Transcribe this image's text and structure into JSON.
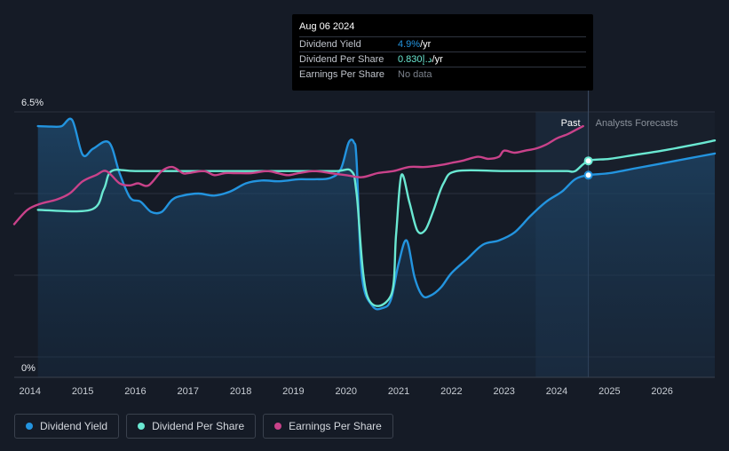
{
  "tooltip": {
    "date": "Aug 06 2024",
    "rows": [
      {
        "label": "Dividend Yield",
        "value": "4.9%",
        "unit": " /yr"
      },
      {
        "label": "Dividend Per Share",
        "value": "0.830د.إ",
        "unit": " /yr"
      },
      {
        "label": "Earnings Per Share",
        "value": "No data",
        "unit": ""
      }
    ]
  },
  "colors": {
    "yield": "#2394df",
    "dps": "#6ae8d2",
    "eps": "#c9428a",
    "background": "#151b26"
  },
  "legend": [
    {
      "label": "Dividend Yield",
      "color": "#2394df"
    },
    {
      "label": "Dividend Per Share",
      "color": "#6ae8d2"
    },
    {
      "label": "Earnings Per Share",
      "color": "#c9428a"
    }
  ],
  "chart_data": {
    "type": "line",
    "y_tick_labels": [
      "6.5%",
      "0%"
    ],
    "ylim": [
      0,
      6.5
    ],
    "xlim": [
      2013.7,
      2027.0
    ],
    "x_ticks": [
      2014,
      2015,
      2016,
      2017,
      2018,
      2019,
      2020,
      2021,
      2022,
      2023,
      2024,
      2025,
      2026
    ],
    "past_label": "Past",
    "forecast_label": "Analysts Forecasts",
    "forecast_start": 2023.6,
    "divider_x": 2024.6,
    "grid": true,
    "series": [
      {
        "name": "Dividend Yield",
        "key": "yield",
        "area": true,
        "x": [
          2014.15,
          2014.4,
          2014.6,
          2014.8,
          2015.0,
          2015.2,
          2015.5,
          2015.7,
          2015.9,
          2016.1,
          2016.3,
          2016.5,
          2016.7,
          2016.9,
          2017.2,
          2017.5,
          2017.8,
          2018.1,
          2018.4,
          2018.7,
          2018.9,
          2019.1,
          2019.4,
          2019.7,
          2019.9,
          2020.05,
          2020.15,
          2020.2,
          2020.3,
          2020.5,
          2020.7,
          2020.85,
          2021.0,
          2021.15,
          2021.3,
          2021.45,
          2021.6,
          2021.8,
          2022.0,
          2022.3,
          2022.6,
          2022.9,
          2023.2,
          2023.5,
          2023.8,
          2024.1,
          2024.35,
          2024.6,
          2025.0,
          2025.5,
          2026.0,
          2026.5,
          2027.0
        ],
        "y": [
          6.15,
          6.14,
          6.15,
          6.3,
          5.45,
          5.6,
          5.75,
          5.0,
          4.4,
          4.3,
          4.05,
          4.05,
          4.35,
          4.45,
          4.5,
          4.45,
          4.55,
          4.75,
          4.82,
          4.8,
          4.82,
          4.85,
          4.85,
          4.88,
          5.1,
          5.75,
          5.75,
          5.3,
          2.5,
          1.75,
          1.7,
          1.9,
          2.8,
          3.35,
          2.45,
          2.0,
          2.0,
          2.2,
          2.55,
          2.9,
          3.25,
          3.35,
          3.55,
          3.95,
          4.3,
          4.55,
          4.85,
          4.95,
          5.0,
          5.12,
          5.24,
          5.36,
          5.48
        ]
      },
      {
        "name": "Dividend Per Share",
        "key": "dps",
        "area": false,
        "x": [
          2014.15,
          2015.15,
          2015.4,
          2015.55,
          2016.0,
          2017.0,
          2018.0,
          2019.0,
          2019.8,
          2020.1,
          2020.2,
          2020.4,
          2020.85,
          2020.95,
          2021.05,
          2021.2,
          2021.35,
          2021.5,
          2021.65,
          2021.85,
          2022.1,
          2023.0,
          2023.9,
          2024.2,
          2024.35,
          2024.6,
          2025.0,
          2025.5,
          2026.0,
          2026.5,
          2027.0
        ],
        "y": [
          4.1,
          4.1,
          4.6,
          5.05,
          5.05,
          5.05,
          5.05,
          5.05,
          5.05,
          5.05,
          4.5,
          2.0,
          2.0,
          3.5,
          4.95,
          4.3,
          3.6,
          3.6,
          4.05,
          4.75,
          5.05,
          5.05,
          5.05,
          5.05,
          5.05,
          5.3,
          5.35,
          5.45,
          5.55,
          5.67,
          5.8
        ]
      },
      {
        "name": "Earnings Per Share",
        "key": "eps",
        "area": false,
        "x": [
          2013.7,
          2013.95,
          2014.2,
          2014.5,
          2014.75,
          2015.0,
          2015.25,
          2015.45,
          2015.7,
          2015.9,
          2016.05,
          2016.25,
          2016.5,
          2016.7,
          2016.9,
          2017.0,
          2017.3,
          2017.5,
          2017.7,
          2017.9,
          2018.2,
          2018.5,
          2018.7,
          2018.9,
          2019.1,
          2019.4,
          2019.7,
          2020.0,
          2020.3,
          2020.6,
          2020.9,
          2021.2,
          2021.5,
          2021.8,
          2022.0,
          2022.2,
          2022.5,
          2022.7,
          2022.9,
          2023.0,
          2023.2,
          2023.4,
          2023.6,
          2023.8,
          2024.0,
          2024.2,
          2024.35,
          2024.5
        ],
        "y": [
          3.75,
          4.1,
          4.25,
          4.35,
          4.5,
          4.8,
          4.95,
          5.05,
          4.75,
          4.7,
          4.75,
          4.7,
          5.05,
          5.15,
          5.0,
          5.0,
          5.05,
          4.95,
          5.0,
          5.0,
          5.0,
          5.05,
          5.0,
          4.95,
          5.0,
          5.05,
          5.0,
          4.95,
          4.9,
          5.0,
          5.05,
          5.15,
          5.15,
          5.2,
          5.25,
          5.3,
          5.4,
          5.35,
          5.4,
          5.55,
          5.5,
          5.55,
          5.6,
          5.7,
          5.85,
          5.95,
          6.05,
          6.15
        ]
      }
    ],
    "markers": [
      {
        "key": "dps",
        "x": 2024.6,
        "y": 5.3
      },
      {
        "key": "yield",
        "x": 2024.6,
        "y": 4.95
      }
    ]
  }
}
